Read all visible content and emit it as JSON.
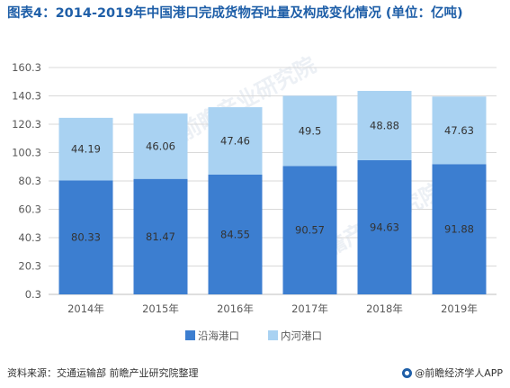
{
  "title": "图表4：2014-2019年中国港口完成货物吞吐量及构成变化情况 (单位：亿吨)",
  "chart_data": {
    "type": "bar",
    "stacked": true,
    "categories": [
      "2014年",
      "2015年",
      "2016年",
      "2017年",
      "2018年",
      "2019年"
    ],
    "series": [
      {
        "name": "沿海港口",
        "color": "#3c7ed0",
        "values": [
          80.33,
          81.47,
          84.55,
          90.57,
          94.63,
          91.88
        ]
      },
      {
        "name": "内河港口",
        "color": "#a9d2f2",
        "values": [
          44.19,
          46.06,
          47.46,
          49.5,
          48.88,
          47.63
        ]
      }
    ],
    "yticks": [
      "0.3",
      "20.3",
      "40.3",
      "60.3",
      "80.3",
      "100.3",
      "120.3",
      "140.3",
      "160.3"
    ],
    "ylim": [
      0.3,
      160.3
    ],
    "grid": true,
    "legend_position": "bottom"
  },
  "source_text": "资料来源：交通运输部 前瞻产业研究院整理",
  "brand_text": "@前瞻经济学人APP",
  "watermark_text": "前瞻产业研究院"
}
